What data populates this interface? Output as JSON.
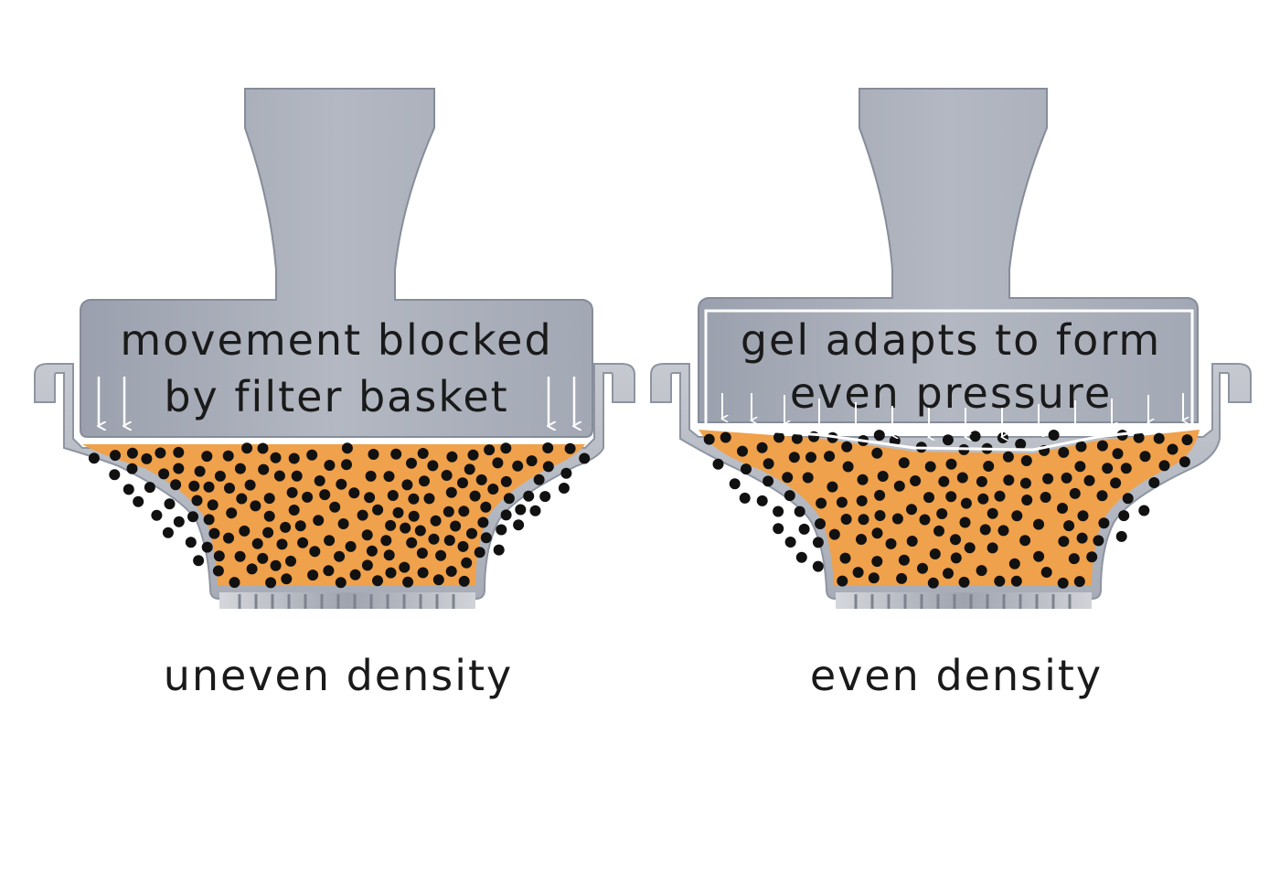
{
  "colors": {
    "steel": "#a1a7b4",
    "steel_dark": "#8f95a3",
    "basket": "#b9bdc6",
    "basket_edge": "#9aa0ad",
    "coffee": "#f0a14b",
    "particle": "#111111",
    "arrow": "#ffffff",
    "text": "#1a1a1a"
  },
  "panels": [
    {
      "tamper_text": [
        "movement blocked",
        "by filter basket"
      ],
      "caption": "uneven density"
    },
    {
      "tamper_text": [
        "gel adapts to form",
        "even pressure"
      ],
      "caption": "even density"
    }
  ],
  "icons": [
    "down-arrow-icon",
    "coffee-particle-icon"
  ]
}
